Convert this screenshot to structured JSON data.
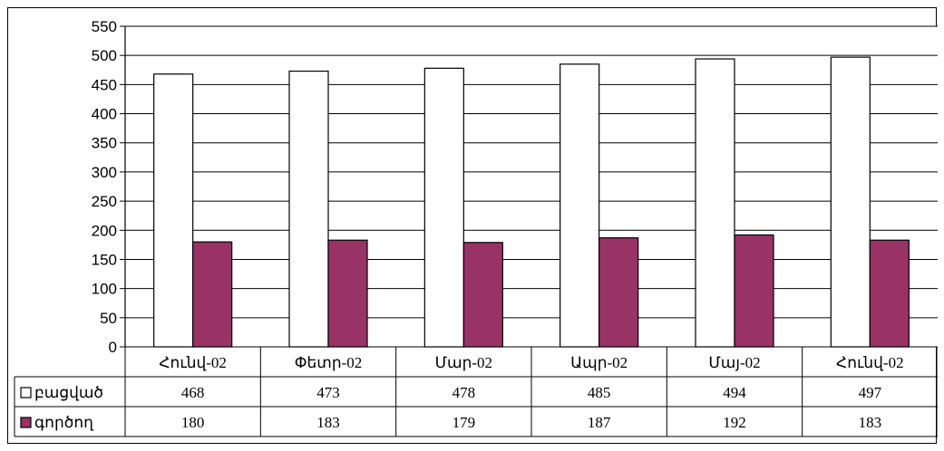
{
  "chart_data": {
    "type": "bar",
    "categories": [
      "Հունվ-02",
      "Փետր-02",
      "Մար-02",
      "Ապր-02",
      "Մայ-02",
      "Հունվ-02"
    ],
    "series": [
      {
        "name": "բացված",
        "values": [
          468,
          473,
          478,
          485,
          494,
          497
        ],
        "color": "#ffffff"
      },
      {
        "name": "գործող",
        "values": [
          180,
          183,
          179,
          187,
          192,
          183
        ],
        "color": "#993366"
      }
    ],
    "ylim": [
      0,
      550
    ],
    "yticks": [
      0,
      50,
      100,
      150,
      200,
      250,
      300,
      350,
      400,
      450,
      500,
      550
    ],
    "grid": true,
    "legend": "data-table"
  }
}
